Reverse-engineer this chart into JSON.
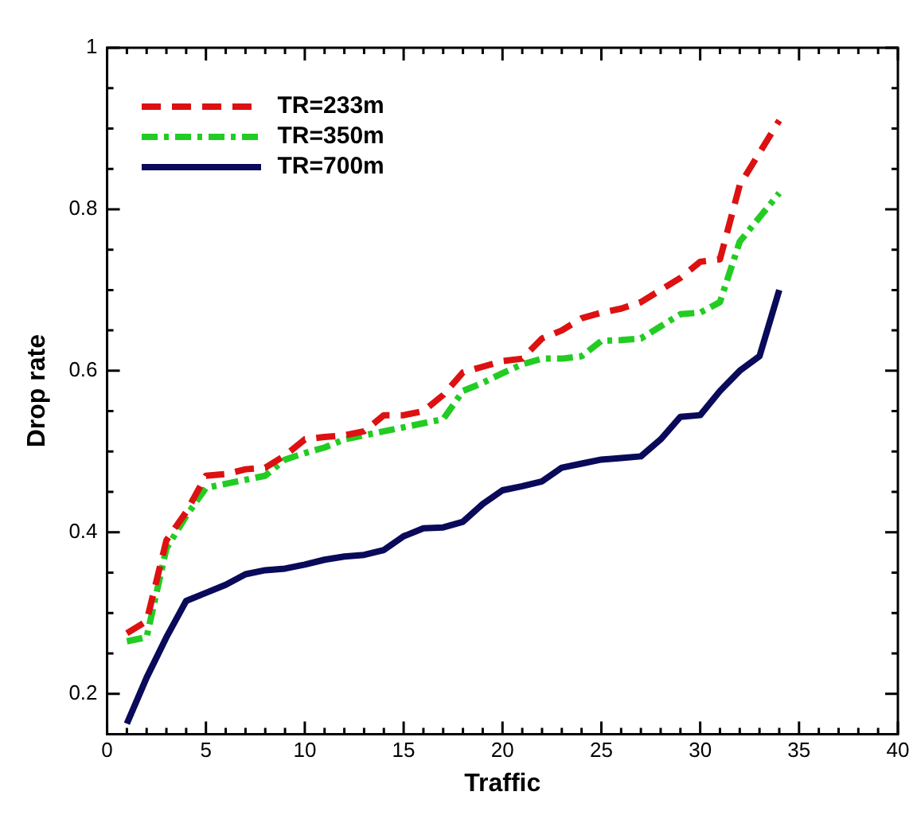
{
  "chart_data": {
    "type": "line",
    "xlabel": "Traffic",
    "ylabel": "Drop rate",
    "x": [
      1,
      2,
      3,
      4,
      5,
      6,
      7,
      8,
      9,
      10,
      11,
      12,
      13,
      14,
      15,
      16,
      17,
      18,
      19,
      20,
      21,
      22,
      23,
      24,
      25,
      26,
      27,
      28,
      29,
      30,
      31,
      32,
      33,
      34
    ],
    "xlim": [
      0,
      40
    ],
    "xticks": [
      0,
      5,
      10,
      15,
      20,
      25,
      30,
      35,
      40
    ],
    "ylim": [
      0.15,
      1
    ],
    "yticks": [
      0.2,
      0.4,
      0.6,
      0.8,
      1
    ],
    "grid": false,
    "legend": "top left",
    "marker": "none",
    "series": [
      {
        "name": "TR=233m",
        "color": "#dd1111",
        "line_style": "dashed",
        "values": [
          0.275,
          0.29,
          0.39,
          0.425,
          0.47,
          0.472,
          0.478,
          0.48,
          0.495,
          0.515,
          0.518,
          0.52,
          0.525,
          0.545,
          0.545,
          0.55,
          0.57,
          0.598,
          0.605,
          0.612,
          0.615,
          0.64,
          0.65,
          0.665,
          0.672,
          0.677,
          0.685,
          0.7,
          0.715,
          0.735,
          0.738,
          0.83,
          0.87,
          0.91
        ]
      },
      {
        "name": "TR=350m",
        "color": "#22cc22",
        "line_style": "dashdot",
        "values": [
          0.265,
          0.27,
          0.38,
          0.42,
          0.455,
          0.46,
          0.465,
          0.47,
          0.49,
          0.498,
          0.505,
          0.515,
          0.52,
          0.525,
          0.53,
          0.535,
          0.54,
          0.575,
          0.585,
          0.597,
          0.608,
          0.615,
          0.615,
          0.618,
          0.637,
          0.638,
          0.64,
          0.655,
          0.67,
          0.672,
          0.685,
          0.76,
          0.79,
          0.82
        ]
      },
      {
        "name": "TR=700m",
        "color": "#0a0a5a",
        "line_style": "solid",
        "values": [
          0.163,
          0.22,
          0.27,
          0.315,
          0.325,
          0.335,
          0.348,
          0.353,
          0.355,
          0.36,
          0.366,
          0.37,
          0.372,
          0.378,
          0.395,
          0.405,
          0.406,
          0.413,
          0.435,
          0.452,
          0.457,
          0.463,
          0.48,
          0.485,
          0.49,
          0.492,
          0.494,
          0.515,
          0.543,
          0.545,
          0.575,
          0.6,
          0.618,
          0.7
        ]
      }
    ]
  }
}
